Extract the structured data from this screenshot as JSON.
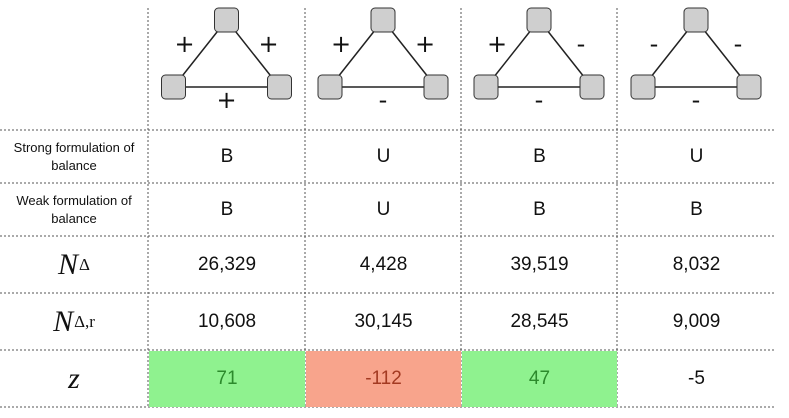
{
  "columns": [
    {
      "edges": {
        "left": "+",
        "right": "+",
        "bottom": "+"
      }
    },
    {
      "edges": {
        "left": "+",
        "right": "+",
        "bottom": "-"
      }
    },
    {
      "edges": {
        "left": "+",
        "right": "-",
        "bottom": "-"
      }
    },
    {
      "edges": {
        "left": "-",
        "right": "-",
        "bottom": "-"
      }
    }
  ],
  "rows": [
    {
      "label": "Strong formulation of balance",
      "cells": [
        "B",
        "U",
        "B",
        "U"
      ]
    },
    {
      "label": "Weak formulation of balance",
      "cells": [
        "B",
        "U",
        "B",
        "B"
      ]
    },
    {
      "symbol": {
        "base": "N",
        "sub": "Δ"
      },
      "cells": [
        "26,329",
        "4,428",
        "39,519",
        "8,032"
      ]
    },
    {
      "symbol": {
        "base": "N",
        "sub": "Δ,r"
      },
      "cells": [
        "10,608",
        "30,145",
        "28,545",
        "9,009"
      ]
    },
    {
      "symbol": {
        "base": "z"
      },
      "cells": [
        "71",
        "-112",
        "47",
        "-5"
      ]
    }
  ]
}
